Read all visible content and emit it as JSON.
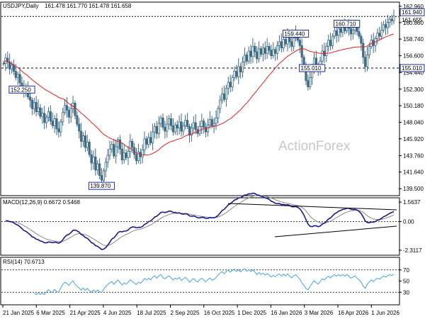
{
  "chart_data": [
    {
      "type": "candlestick",
      "title": "USDJPY,Daily",
      "ohlc_header": "161.478 161.770 161.478 161.658",
      "ylim": [
        138.7,
        163.4
      ],
      "y_ticks": [
        "162.960",
        "160.860",
        "158.740",
        "156.600",
        "154.440",
        "152.300",
        "150.180",
        "148.040",
        "145.920",
        "143.760",
        "141.640",
        "139.500"
      ],
      "x_ticks": [
        "21 Jan 2025",
        "6 Mar 2025",
        "21 Apr 2025",
        "4 Jun 2025",
        "18 Jul 2025",
        "2 Sep 2025",
        "16 Oct 2025",
        "1 Dec 2025",
        "16 Jan 2026",
        "3 Mar 2026",
        "16 Apr 2026",
        "1 Jun 2026"
      ],
      "price_marker_current": "161.940",
      "price_marker_secondary": "161.655",
      "level_line": {
        "value": 155.01,
        "label": "155.010"
      },
      "top_line_value": 161.65,
      "annotations": [
        {
          "text": "139.870",
          "value": 139.87
        },
        {
          "text": "159.440",
          "value": 159.44
        },
        {
          "text": "152.250",
          "value": 152.25
        },
        {
          "text": "160.710",
          "value": 160.71
        },
        {
          "text": "155.010",
          "value": 155.01
        }
      ],
      "watermark": "ActionForex",
      "closes": [
        155.6,
        156.3,
        155.8,
        154.9,
        155.4,
        154.6,
        153.8,
        154.2,
        153.1,
        152.4,
        151.8,
        152.6,
        151.3,
        150.9,
        149.8,
        150.6,
        149.4,
        149.9,
        148.8,
        149.2,
        148.0,
        148.7,
        149.4,
        148.2,
        147.6,
        148.5,
        147.2,
        146.8,
        148.1,
        149.3,
        150.2,
        149.6,
        148.7,
        149.8,
        150.5,
        148.9,
        147.8,
        146.9,
        145.6,
        146.3,
        144.8,
        145.5,
        143.9,
        142.8,
        143.6,
        141.9,
        142.7,
        141.2,
        140.6,
        141.8,
        142.9,
        143.8,
        144.6,
        145.2,
        143.7,
        144.9,
        145.8,
        144.6,
        143.2,
        144.1,
        143.5,
        144.3,
        145.6,
        144.8,
        143.9,
        143.1,
        144.2,
        143.6,
        144.5,
        145.9,
        145.2,
        146.1,
        145.4,
        146.8,
        147.5,
        146.6,
        147.9,
        148.6,
        147.4,
        146.9,
        147.8,
        148.5,
        147.6,
        146.8,
        147.7,
        147.3,
        148.1,
        146.9,
        147.6,
        148.3,
        147.5,
        146.4,
        147.3,
        148.0,
        147.1,
        146.6,
        147.5,
        148.2,
        147.4,
        146.8,
        147.7,
        148.4,
        147.6,
        147.9,
        148.6,
        149.8,
        150.9,
        151.7,
        151.0,
        152.4,
        153.2,
        152.6,
        153.8,
        154.6,
        153.9,
        155.2,
        154.5,
        155.8,
        156.7,
        155.9,
        157.2,
        156.5,
        157.8,
        157.1,
        156.2,
        157.5,
        156.8,
        157.6,
        156.9,
        157.8,
        157.3,
        156.6,
        157.4,
        156.9,
        157.9,
        158.4,
        157.6,
        158.7,
        158.1,
        159.2,
        158.4,
        157.8,
        158.9,
        159.4,
        158.6,
        157.9,
        156.4,
        155.2,
        153.4,
        152.6,
        153.8,
        155.1,
        156.3,
        155.4,
        154.6,
        155.9,
        157.2,
        156.6,
        157.8,
        158.6,
        157.9,
        159.1,
        159.8,
        159.2,
        160.1,
        159.6,
        160.4,
        159.8,
        160.7,
        160.1,
        159.4,
        159.9,
        160.5,
        159.7,
        159.1,
        158.2,
        156.4,
        155.2,
        156.7,
        157.8,
        158.6,
        157.9,
        158.8,
        159.5,
        159.1,
        159.9,
        160.6,
        160.2,
        160.9,
        161.3,
        161.1,
        161.7
      ]
    },
    {
      "type": "line",
      "title": "MACD(12,26,9) 0.6672 0.5468",
      "y_ticks": [
        "1.5637",
        "0.00",
        "-2.3117"
      ],
      "ylim": [
        -2.6,
        1.8
      ],
      "x_start": 1
    },
    {
      "type": "line",
      "title": "RSI(14) 70.6713",
      "y_ticks": [
        "70",
        "50",
        "30"
      ],
      "ylim": [
        10,
        90
      ],
      "x_start": 15
    }
  ]
}
